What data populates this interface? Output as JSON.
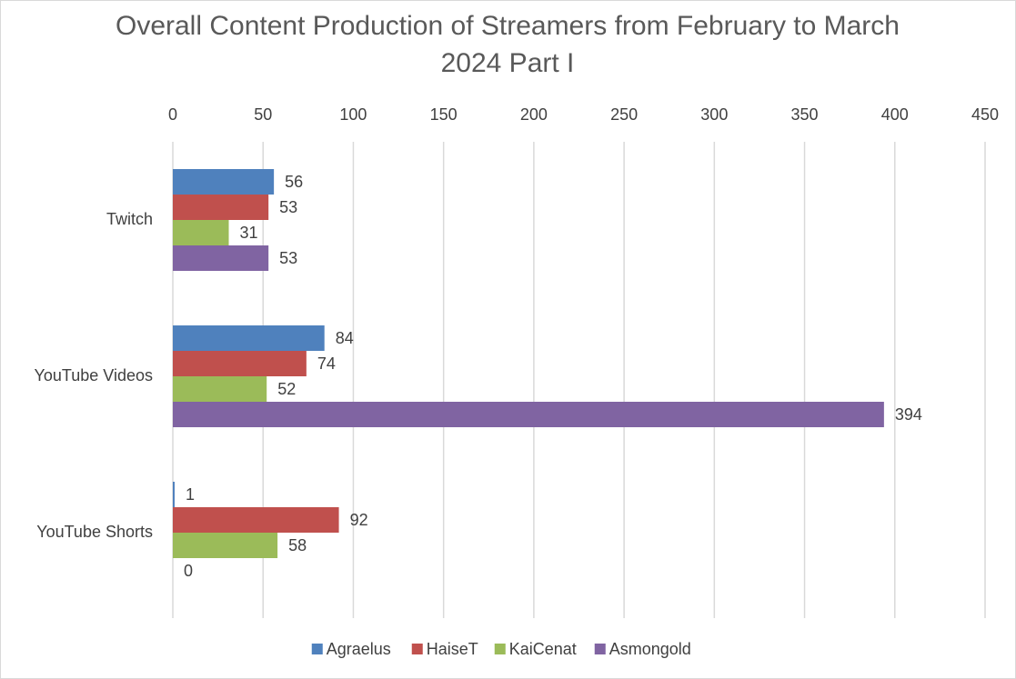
{
  "chart_data": {
    "type": "bar",
    "orientation": "horizontal",
    "title": "Overall Content Production of Streamers from February to March 2024 Part I",
    "categories": [
      "Twitch",
      "YouTube Videos",
      "YouTube Shorts"
    ],
    "series": [
      {
        "name": "Agraelus",
        "color": "#4f81bd",
        "values": [
          56,
          84,
          1
        ]
      },
      {
        "name": "HaiseT",
        "color": "#c0504d",
        "values": [
          53,
          74,
          92
        ]
      },
      {
        "name": "KaiCenat",
        "color": "#9bbb59",
        "values": [
          31,
          52,
          58
        ]
      },
      {
        "name": "Asmongold",
        "color": "#8064a2",
        "values": [
          53,
          394,
          0
        ]
      }
    ],
    "xlim": [
      0,
      450
    ],
    "xticks": [
      0,
      50,
      100,
      150,
      200,
      250,
      300,
      350,
      400,
      450
    ],
    "grid": true,
    "legend": "bottom"
  }
}
